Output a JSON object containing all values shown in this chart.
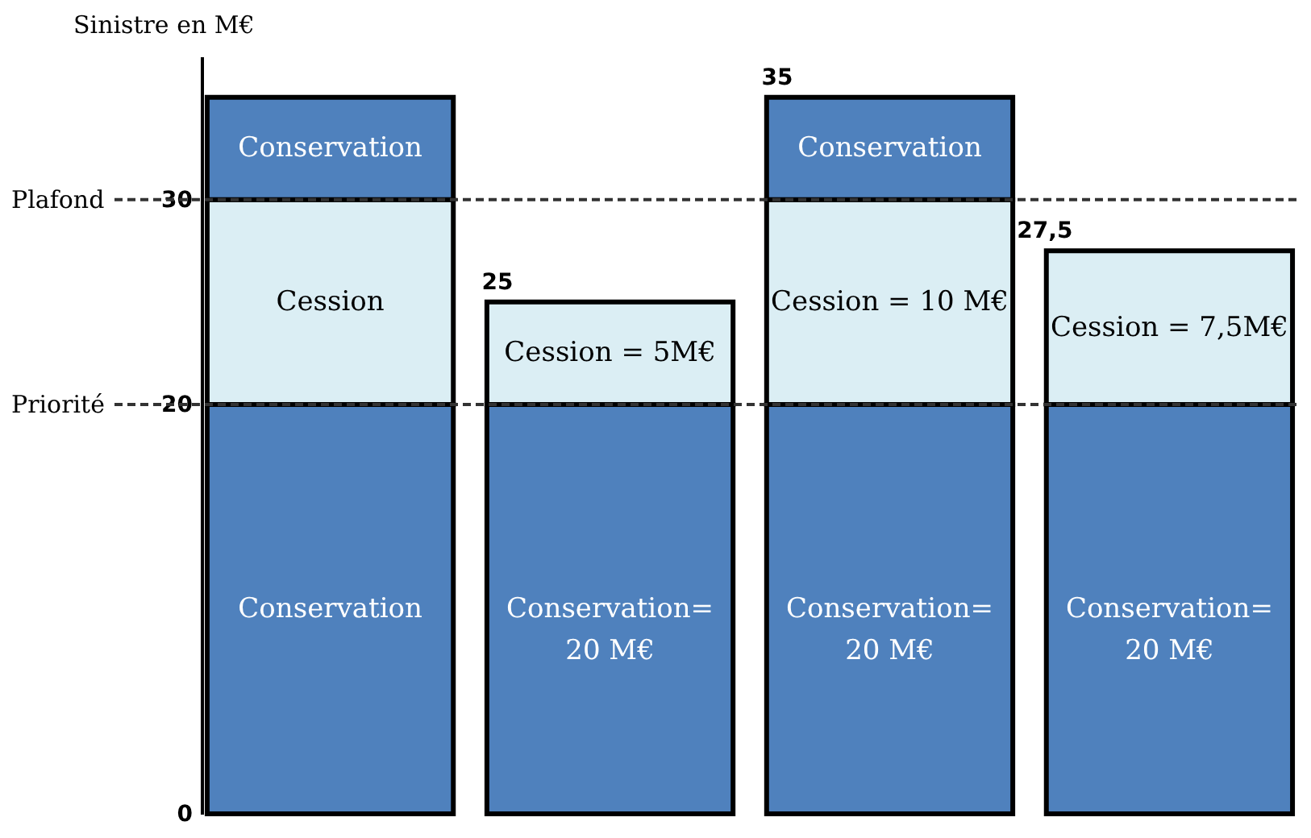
{
  "chart_data": {
    "type": "bar",
    "stacked": true,
    "ylabel": "Sinistre en M€",
    "categories": [
      null,
      null,
      null,
      null
    ],
    "series": [
      {
        "color": "#4f81bd",
        "values": [
          20,
          20,
          20,
          20
        ],
        "value_labels": [
          "Conservation",
          "Conservation=\n20 M€",
          "Conservation=\n20 M€",
          "Conservation=\n20 M€"
        ]
      },
      {
        "color": "#dbeef4",
        "values": [
          10,
          5,
          10,
          7.5
        ],
        "value_labels": [
          "Cession",
          "Cession = 5M€",
          "Cession = 10 M€",
          "Cession = 7,5M€"
        ]
      },
      {
        "color": "#4f81bd",
        "values": [
          5,
          0,
          5,
          0
        ],
        "value_labels": [
          "Conservation",
          null,
          "Conservation",
          null
        ]
      }
    ],
    "totals": [
      null,
      "25",
      "35",
      "27,5"
    ],
    "ylim": [
      0,
      37
    ],
    "yticks": [
      0,
      20,
      30
    ],
    "grid": false,
    "ref_lines": [
      {
        "axis": "y",
        "value": 30,
        "label": "Plafond",
        "line_style": "dashed",
        "color": "#333333"
      },
      {
        "axis": "y",
        "value": 20,
        "label": "Priorité",
        "line_style": "dashed",
        "color": "#333333"
      }
    ]
  }
}
